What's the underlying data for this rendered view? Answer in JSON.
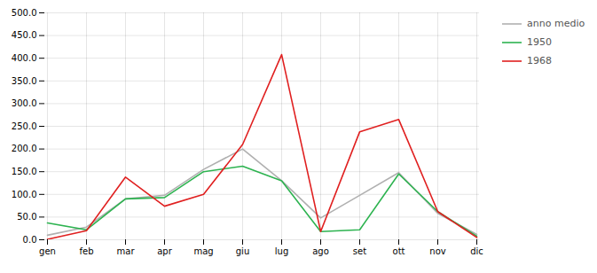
{
  "chart_data": {
    "type": "line",
    "categories": [
      "gen",
      "feb",
      "mar",
      "apr",
      "mag",
      "giu",
      "lug",
      "ago",
      "set",
      "ott",
      "nov",
      "dic"
    ],
    "series": [
      {
        "name": "anno medio",
        "color": "#b0b0b0",
        "values": [
          10,
          28,
          90,
          98,
          155,
          200,
          130,
          48,
          98,
          148,
          58,
          12
        ]
      },
      {
        "name": "1950",
        "color": "#2db350",
        "values": [
          37,
          22,
          90,
          93,
          150,
          162,
          130,
          18,
          22,
          145,
          62,
          8
        ]
      },
      {
        "name": "1968",
        "color": "#e02020",
        "values": [
          1,
          20,
          138,
          74,
          100,
          210,
          408,
          18,
          238,
          265,
          62,
          5
        ]
      }
    ],
    "ylim": [
      0,
      500
    ],
    "yticks": [
      {
        "value": 0,
        "label": "0.0"
      },
      {
        "value": 50,
        "label": "50.0"
      },
      {
        "value": 100,
        "label": "100.0"
      },
      {
        "value": 150,
        "label": "150.0"
      },
      {
        "value": 200,
        "label": "200.0"
      },
      {
        "value": 250,
        "label": "250.0"
      },
      {
        "value": 300,
        "label": "300.0"
      },
      {
        "value": 350,
        "label": "350.0"
      },
      {
        "value": 400,
        "label": "400.0"
      },
      {
        "value": 450,
        "label": "450.0"
      },
      {
        "value": 500,
        "label": "500.0"
      }
    ],
    "grid": true,
    "legend": "right"
  }
}
